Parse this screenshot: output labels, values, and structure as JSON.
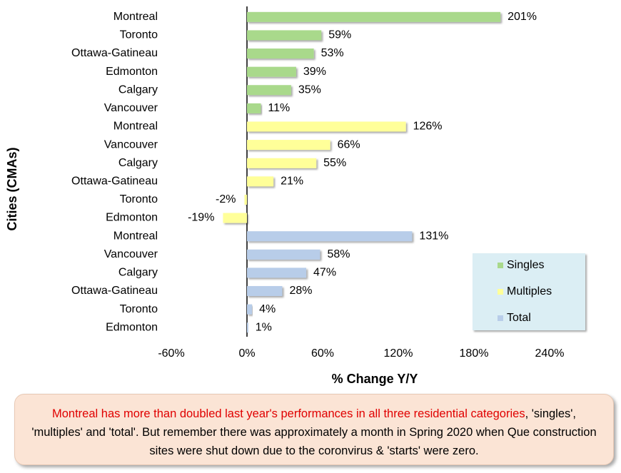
{
  "chart_data": {
    "type": "bar",
    "orientation": "horizontal",
    "categories": [
      "Montreal",
      "Toronto",
      "Ottawa-Gatineau",
      "Edmonton",
      "Calgary",
      "Vancouver",
      "Montreal",
      "Vancouver",
      "Calgary",
      "Ottawa-Gatineau",
      "Toronto",
      "Edmonton",
      "Montreal",
      "Vancouver",
      "Calgary",
      "Ottawa-Gatineau",
      "Toronto",
      "Edmonton"
    ],
    "series": [
      {
        "name": "Singles",
        "color": "#a9d98b",
        "values": [
          201,
          59,
          53,
          39,
          35,
          11,
          null,
          null,
          null,
          null,
          null,
          null,
          null,
          null,
          null,
          null,
          null,
          null
        ],
        "value_labels": [
          "201%",
          "59%",
          "53%",
          "39%",
          "35%",
          "11%",
          null,
          null,
          null,
          null,
          null,
          null,
          null,
          null,
          null,
          null,
          null,
          null
        ]
      },
      {
        "name": "Multiples",
        "color": "#ffff99",
        "values": [
          null,
          null,
          null,
          null,
          null,
          null,
          126,
          66,
          55,
          21,
          -2,
          -19,
          null,
          null,
          null,
          null,
          null,
          null
        ],
        "value_labels": [
          null,
          null,
          null,
          null,
          null,
          null,
          "126%",
          "66%",
          "55%",
          "21%",
          "-2%",
          "-19%",
          null,
          null,
          null,
          null,
          null,
          null
        ]
      },
      {
        "name": "Total",
        "color": "#b8cde9",
        "values": [
          null,
          null,
          null,
          null,
          null,
          null,
          null,
          null,
          null,
          null,
          null,
          null,
          131,
          58,
          47,
          28,
          4,
          1
        ],
        "value_labels": [
          null,
          null,
          null,
          null,
          null,
          null,
          null,
          null,
          null,
          null,
          null,
          null,
          "131%",
          "58%",
          "47%",
          "28%",
          "4%",
          "1%"
        ]
      }
    ],
    "xlim": [
      -60,
      270
    ],
    "xticks": [
      {
        "value": -60,
        "label": "-60%"
      },
      {
        "value": 0,
        "label": "0%"
      },
      {
        "value": 60,
        "label": "60%"
      },
      {
        "value": 120,
        "label": "120%"
      },
      {
        "value": 180,
        "label": "180%"
      },
      {
        "value": 240,
        "label": "240%"
      }
    ],
    "xlabel": "% Change Y/Y",
    "ylabel": "Cities (CMAs)",
    "legend": "lower right",
    "annotation": {
      "highlight": "Montreal has more than doubled last year's performances in all three residential categories",
      "text": ", 'singles', 'multiples' and 'total'. But remember there was approximately a month in Spring 2020 when Que construction sites were shut down due to the coronvirus & 'starts' were zero."
    }
  }
}
